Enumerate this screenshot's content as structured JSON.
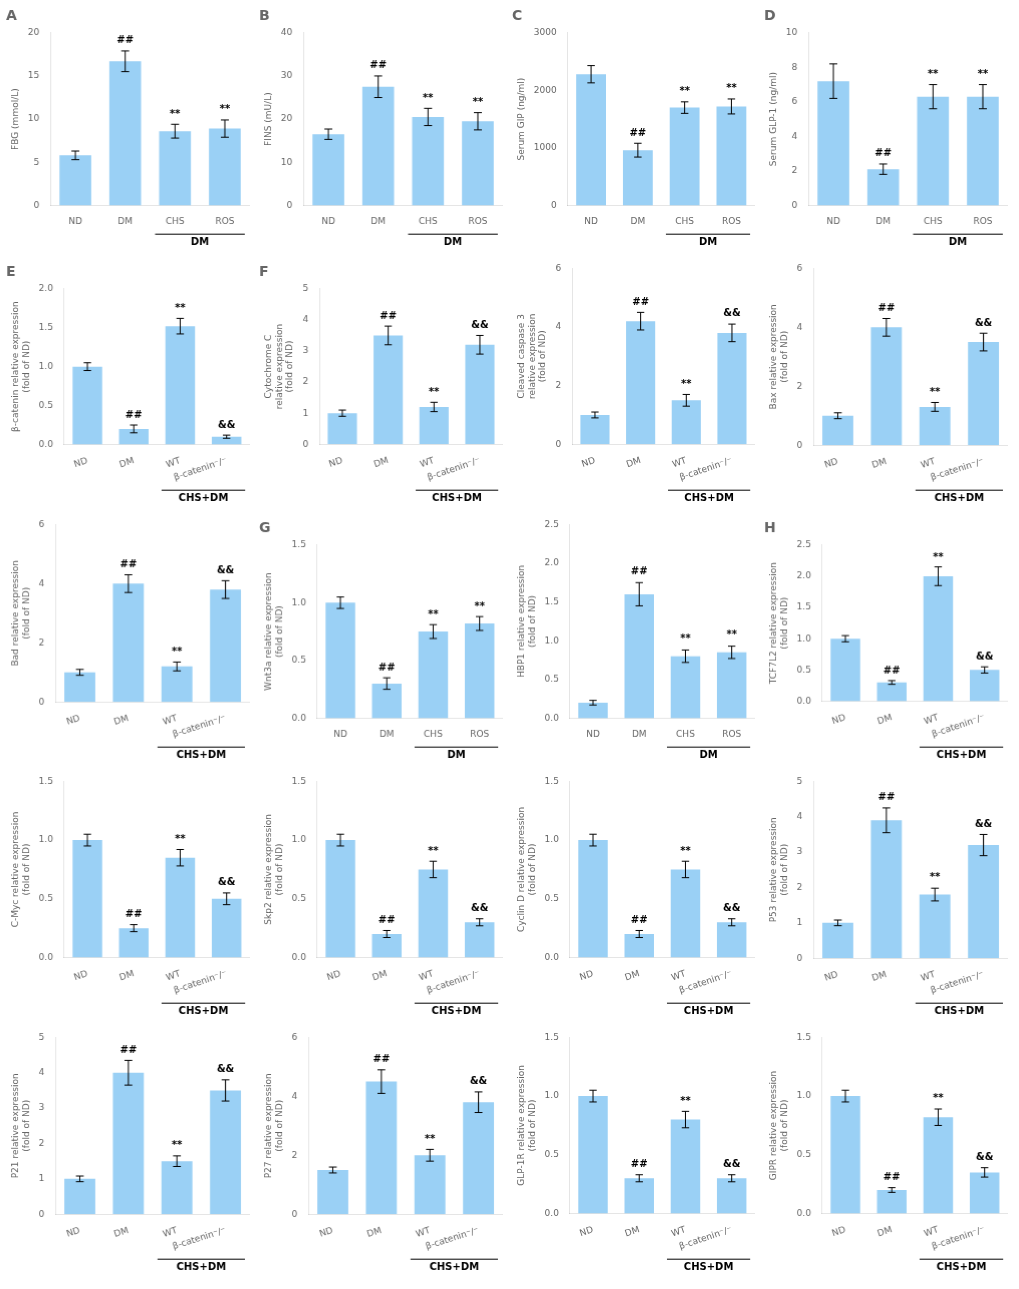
{
  "chart_data": [
    {
      "type": "bar",
      "title": "A",
      "categories": [
        "ND",
        "DM",
        "CHS",
        "ROS"
      ],
      "values": [
        5.8,
        16.7,
        8.6,
        8.9
      ],
      "errors": [
        0.5,
        1.2,
        0.8,
        1.0
      ],
      "ylabel": "FBG (mmol/L)",
      "ylim": [
        0,
        20
      ],
      "yticks": [
        0,
        5,
        10,
        15,
        20
      ],
      "annotations": [
        null,
        "##",
        "**",
        "**"
      ],
      "group": {
        "label": "DM",
        "categories": [
          "CHS",
          "ROS"
        ]
      },
      "grid": false
    },
    {
      "type": "bar",
      "title": "B",
      "categories": [
        "ND",
        "DM",
        "CHS",
        "ROS"
      ],
      "values": [
        16.5,
        27.5,
        20.5,
        19.5
      ],
      "errors": [
        1.2,
        2.5,
        2.0,
        2.0
      ],
      "ylabel": "FINS (mU/L)",
      "ylim": [
        0,
        40
      ],
      "yticks": [
        0,
        10,
        20,
        30,
        40
      ],
      "annotations": [
        null,
        "##",
        "**",
        "**"
      ],
      "group": {
        "label": "DM",
        "categories": [
          "CHS",
          "ROS"
        ]
      },
      "grid": false
    },
    {
      "type": "bar",
      "title": "C",
      "categories": [
        "ND",
        "DM",
        "CHS",
        "ROS"
      ],
      "values": [
        2280,
        960,
        1700,
        1720
      ],
      "errors": [
        150,
        120,
        100,
        130
      ],
      "ylabel": "Serum GIP (ng/ml)",
      "ylim": [
        0,
        3000
      ],
      "yticks": [
        0,
        1000,
        2000,
        3000
      ],
      "annotations": [
        null,
        "##",
        "**",
        "**"
      ],
      "group": {
        "label": "DM",
        "categories": [
          "CHS",
          "ROS"
        ]
      },
      "grid": false
    },
    {
      "type": "bar",
      "title": "D",
      "categories": [
        "ND",
        "DM",
        "CHS",
        "ROS"
      ],
      "values": [
        7.2,
        2.1,
        6.3,
        6.3
      ],
      "errors": [
        1.0,
        0.3,
        0.7,
        0.7
      ],
      "ylabel": "Serum GLP-1 (ng/ml)",
      "ylim": [
        0,
        10
      ],
      "yticks": [
        0,
        2,
        4,
        6,
        8,
        10
      ],
      "annotations": [
        null,
        "##",
        "**",
        "**"
      ],
      "group": {
        "label": "DM",
        "categories": [
          "CHS",
          "ROS"
        ]
      },
      "grid": false
    },
    {
      "type": "bar",
      "title": "E",
      "categories": [
        "ND",
        "DM",
        "WT",
        "β-catenin⁻/⁻"
      ],
      "values": [
        1.0,
        0.2,
        1.52,
        0.1
      ],
      "errors": [
        0.05,
        0.05,
        0.1,
        0.02
      ],
      "ylabel": "β-catenin relative expression\n(fold of ND)",
      "ylim": [
        0,
        2.0
      ],
      "yticks": [
        {
          "value": 0,
          "label": "0.0"
        },
        0.5,
        {
          "value": 1,
          "label": "1.0"
        },
        1.5,
        {
          "value": 2,
          "label": "2.0"
        }
      ],
      "annotations": [
        null,
        "##",
        "**",
        "&&"
      ],
      "group": {
        "label": "CHS+DM",
        "categories": [
          "WT",
          "β-catenin⁻/⁻"
        ]
      },
      "grid": false
    },
    {
      "type": "bar",
      "title": "F",
      "categories": [
        "ND",
        "DM",
        "WT",
        "β-catenin⁻/⁻"
      ],
      "values": [
        1.0,
        3.5,
        1.2,
        3.2
      ],
      "errors": [
        0.1,
        0.3,
        0.15,
        0.3
      ],
      "ylabel": "Cytochrome C\nrelative expression\n(fold of ND)",
      "ylim": [
        0,
        5
      ],
      "yticks": [
        0,
        1,
        2,
        3,
        4,
        5
      ],
      "annotations": [
        null,
        "##",
        "**",
        "&&"
      ],
      "group": {
        "label": "CHS+DM",
        "categories": [
          "WT",
          "β-catenin⁻/⁻"
        ]
      },
      "grid": false
    },
    {
      "type": "bar",
      "categories": [
        "ND",
        "DM",
        "WT",
        "β-catenin⁻/⁻"
      ],
      "values": [
        1.0,
        4.2,
        1.5,
        3.8
      ],
      "errors": [
        0.1,
        0.3,
        0.2,
        0.3
      ],
      "ylabel": "Cleaved caspase 3\nrelative expression\n(fold of ND)",
      "ylim": [
        0,
        6
      ],
      "yticks": [
        0,
        2,
        4,
        6
      ],
      "annotations": [
        null,
        "##",
        "**",
        "&&"
      ],
      "group": {
        "label": "CHS+DM",
        "categories": [
          "WT",
          "β-catenin⁻/⁻"
        ]
      },
      "grid": false
    },
    {
      "type": "bar",
      "categories": [
        "ND",
        "DM",
        "WT",
        "β-catenin⁻/⁻"
      ],
      "values": [
        1.0,
        4.0,
        1.3,
        3.5
      ],
      "errors": [
        0.1,
        0.3,
        0.15,
        0.3
      ],
      "ylabel": "Bax relative expression\n(fold of ND)",
      "ylim": [
        0,
        6
      ],
      "yticks": [
        0,
        2,
        4,
        6
      ],
      "annotations": [
        null,
        "##",
        "**",
        "&&"
      ],
      "group": {
        "label": "CHS+DM",
        "categories": [
          "WT",
          "β-catenin⁻/⁻"
        ]
      },
      "grid": false
    },
    {
      "type": "bar",
      "categories": [
        "ND",
        "DM",
        "WT",
        "β-catenin⁻/⁻"
      ],
      "values": [
        1.0,
        4.0,
        1.2,
        3.8
      ],
      "errors": [
        0.1,
        0.3,
        0.15,
        0.3
      ],
      "ylabel": "Bad relative expression\n(fold of ND)",
      "ylim": [
        0,
        6
      ],
      "yticks": [
        0,
        2,
        4,
        6
      ],
      "annotations": [
        null,
        "##",
        "**",
        "&&"
      ],
      "group": {
        "label": "CHS+DM",
        "categories": [
          "WT",
          "β-catenin⁻/⁻"
        ]
      },
      "grid": false
    },
    {
      "type": "bar",
      "title": "G",
      "categories": [
        "ND",
        "DM",
        "CHS",
        "ROS"
      ],
      "values": [
        1.0,
        0.3,
        0.75,
        0.82
      ],
      "errors": [
        0.05,
        0.05,
        0.06,
        0.06
      ],
      "ylabel": "Wnt3a relative expression\n(fold of ND)",
      "ylim": [
        0,
        1.5
      ],
      "yticks": [
        {
          "value": 0,
          "label": "0.0"
        },
        0.5,
        {
          "value": 1,
          "label": "1.0"
        },
        1.5
      ],
      "annotations": [
        null,
        "##",
        "**",
        "**"
      ],
      "group": {
        "label": "DM",
        "categories": [
          "CHS",
          "ROS"
        ]
      },
      "grid": false
    },
    {
      "type": "bar",
      "categories": [
        "ND",
        "DM",
        "CHS",
        "ROS"
      ],
      "values": [
        0.2,
        1.6,
        0.8,
        0.85
      ],
      "errors": [
        0.03,
        0.15,
        0.08,
        0.08
      ],
      "ylabel": "HBP1 relative expression\n(fold of ND)",
      "ylim": [
        0,
        2.5
      ],
      "yticks": [
        {
          "value": 0,
          "label": "0.0"
        },
        0.5,
        {
          "value": 1,
          "label": "1.0"
        },
        1.5,
        {
          "value": 2,
          "label": "2.0"
        },
        2.5
      ],
      "annotations": [
        null,
        "##",
        "**",
        "**"
      ],
      "group": {
        "label": "DM",
        "categories": [
          "CHS",
          "ROS"
        ]
      },
      "grid": false
    },
    {
      "type": "bar",
      "title": "H",
      "categories": [
        "ND",
        "DM",
        "WT",
        "β-catenin⁻/⁻"
      ],
      "values": [
        1.0,
        0.3,
        2.0,
        0.5
      ],
      "errors": [
        0.05,
        0.03,
        0.15,
        0.05
      ],
      "ylabel": "TCF7L2 relative expression\n(fold of ND)",
      "ylim": [
        0,
        2.5
      ],
      "yticks": [
        {
          "value": 0,
          "label": "0.0"
        },
        0.5,
        {
          "value": 1,
          "label": "1.0"
        },
        1.5,
        {
          "value": 2,
          "label": "2.0"
        },
        2.5
      ],
      "annotations": [
        null,
        "##",
        "**",
        "&&"
      ],
      "group": {
        "label": "CHS+DM",
        "categories": [
          "WT",
          "β-catenin⁻/⁻"
        ]
      },
      "grid": false
    },
    {
      "type": "bar",
      "categories": [
        "ND",
        "DM",
        "WT",
        "β-catenin⁻/⁻"
      ],
      "values": [
        1.0,
        0.25,
        0.85,
        0.5
      ],
      "errors": [
        0.05,
        0.03,
        0.07,
        0.05
      ],
      "ylabel": "C-Myc relative expression\n(fold of ND)",
      "ylim": [
        0,
        1.5
      ],
      "yticks": [
        {
          "value": 0,
          "label": "0.0"
        },
        0.5,
        {
          "value": 1,
          "label": "1.0"
        },
        1.5
      ],
      "annotations": [
        null,
        "##",
        "**",
        "&&"
      ],
      "group": {
        "label": "CHS+DM",
        "categories": [
          "WT",
          "β-catenin⁻/⁻"
        ]
      },
      "grid": false
    },
    {
      "type": "bar",
      "categories": [
        "ND",
        "DM",
        "WT",
        "β-catenin⁻/⁻"
      ],
      "values": [
        1.0,
        0.2,
        0.75,
        0.3
      ],
      "errors": [
        0.05,
        0.03,
        0.07,
        0.03
      ],
      "ylabel": "Skp2 relative expression\n(fold of ND)",
      "ylim": [
        0,
        1.5
      ],
      "yticks": [
        {
          "value": 0,
          "label": "0.0"
        },
        0.5,
        {
          "value": 1,
          "label": "1.0"
        },
        1.5
      ],
      "annotations": [
        null,
        "##",
        "**",
        "&&"
      ],
      "group": {
        "label": "CHS+DM",
        "categories": [
          "WT",
          "β-catenin⁻/⁻"
        ]
      },
      "grid": false
    },
    {
      "type": "bar",
      "categories": [
        "ND",
        "DM",
        "WT",
        "β-catenin⁻/⁻"
      ],
      "values": [
        1.0,
        0.2,
        0.75,
        0.3
      ],
      "errors": [
        0.05,
        0.03,
        0.07,
        0.03
      ],
      "ylabel": "Cyclin D relative expression\n(fold of ND)",
      "ylim": [
        0,
        1.5
      ],
      "yticks": [
        {
          "value": 0,
          "label": "0.0"
        },
        0.5,
        {
          "value": 1,
          "label": "1.0"
        },
        1.5
      ],
      "annotations": [
        null,
        "##",
        "**",
        "&&"
      ],
      "group": {
        "label": "CHS+DM",
        "categories": [
          "WT",
          "β-catenin⁻/⁻"
        ]
      },
      "grid": false
    },
    {
      "type": "bar",
      "categories": [
        "ND",
        "DM",
        "WT",
        "β-catenin⁻/⁻"
      ],
      "values": [
        1.0,
        3.9,
        1.8,
        3.2
      ],
      "errors": [
        0.08,
        0.35,
        0.18,
        0.3
      ],
      "ylabel": "P53 relative expression\n(fold of ND)",
      "ylim": [
        0,
        5
      ],
      "yticks": [
        0,
        1,
        2,
        3,
        4,
        5
      ],
      "annotations": [
        null,
        "##",
        "**",
        "&&"
      ],
      "group": {
        "label": "CHS+DM",
        "categories": [
          "WT",
          "β-catenin⁻/⁻"
        ]
      },
      "grid": false
    },
    {
      "type": "bar",
      "categories": [
        "ND",
        "DM",
        "WT",
        "β-catenin⁻/⁻"
      ],
      "values": [
        1.0,
        4.0,
        1.5,
        3.5
      ],
      "errors": [
        0.08,
        0.35,
        0.15,
        0.3
      ],
      "ylabel": "P21 relative expression\n(fold of ND)",
      "ylim": [
        0,
        5
      ],
      "yticks": [
        0,
        1,
        2,
        3,
        4,
        5
      ],
      "annotations": [
        null,
        "##",
        "**",
        "&&"
      ],
      "group": {
        "label": "CHS+DM",
        "categories": [
          "WT",
          "β-catenin⁻/⁻"
        ]
      },
      "grid": false
    },
    {
      "type": "bar",
      "categories": [
        "ND",
        "DM",
        "WT",
        "β-catenin⁻/⁻"
      ],
      "values": [
        1.5,
        4.5,
        2.0,
        3.8
      ],
      "errors": [
        0.1,
        0.4,
        0.2,
        0.35
      ],
      "ylabel": "P27 relative expression\n(fold of ND)",
      "ylim": [
        0,
        6
      ],
      "yticks": [
        0,
        2,
        4,
        6
      ],
      "annotations": [
        null,
        "##",
        "**",
        "&&"
      ],
      "group": {
        "label": "CHS+DM",
        "categories": [
          "WT",
          "β-catenin⁻/⁻"
        ]
      },
      "grid": false
    },
    {
      "type": "bar",
      "categories": [
        "ND",
        "DM",
        "WT",
        "β-catenin⁻/⁻"
      ],
      "values": [
        1.0,
        0.3,
        0.8,
        0.3
      ],
      "errors": [
        0.05,
        0.03,
        0.07,
        0.03
      ],
      "ylabel": "GLP-1R relative expression\n(fold of ND)",
      "ylim": [
        0,
        1.5
      ],
      "yticks": [
        {
          "value": 0,
          "label": "0.0"
        },
        0.5,
        {
          "value": 1,
          "label": "1.0"
        },
        1.5
      ],
      "annotations": [
        null,
        "##",
        "**",
        "&&"
      ],
      "group": {
        "label": "CHS+DM",
        "categories": [
          "WT",
          "β-catenin⁻/⁻"
        ]
      },
      "grid": false
    },
    {
      "type": "bar",
      "categories": [
        "ND",
        "DM",
        "WT",
        "β-catenin⁻/⁻"
      ],
      "values": [
        1.0,
        0.2,
        0.82,
        0.35
      ],
      "errors": [
        0.05,
        0.02,
        0.07,
        0.04
      ],
      "ylabel": "GIPR relative expression\n(fold of ND)",
      "ylim": [
        0,
        1.5
      ],
      "yticks": [
        {
          "value": 0,
          "label": "0.0"
        },
        0.5,
        {
          "value": 1,
          "label": "1.0"
        },
        1.5
      ],
      "annotations": [
        null,
        "##",
        "**",
        "&&"
      ],
      "group": {
        "label": "CHS+DM",
        "categories": [
          "WT",
          "β-catenin⁻/⁻"
        ]
      },
      "grid": false
    }
  ]
}
